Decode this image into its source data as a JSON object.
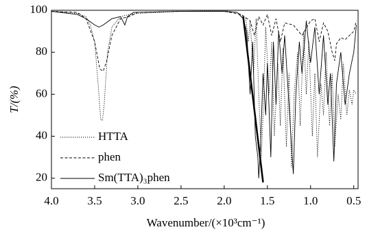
{
  "chart_data": {
    "type": "line",
    "x_label": "Wavenumber/(×10³cm⁻¹)",
    "y_label": "T/(%)",
    "xlim": [
      4.0,
      0.45
    ],
    "ylim": [
      15,
      100
    ],
    "xticks": [
      {
        "value": 4,
        "label": "4.0"
      },
      3.5,
      {
        "value": 3,
        "label": "3.0"
      },
      2.5,
      {
        "value": 2,
        "label": "2.0"
      },
      1.5,
      {
        "value": 1,
        "label": "1.0"
      },
      0.5
    ],
    "yticks": [
      20,
      40,
      60,
      80,
      100
    ],
    "legend": "lower-left",
    "series": [
      {
        "name": "HTTA",
        "color": "#000000",
        "dash": "dotted",
        "x": [
          4.0,
          3.8,
          3.7,
          3.6,
          3.55,
          3.5,
          3.46,
          3.43,
          3.41,
          3.39,
          3.35,
          3.3,
          3.2,
          3.1,
          3.0,
          2.5,
          2.0,
          1.85,
          1.75,
          1.72,
          1.7,
          1.66,
          1.63,
          1.6,
          1.57,
          1.55,
          1.52,
          1.48,
          1.45,
          1.42,
          1.38,
          1.35,
          1.32,
          1.28,
          1.25,
          1.22,
          1.19,
          1.15,
          1.12,
          1.08,
          1.05,
          1.02,
          0.98,
          0.95,
          0.92,
          0.88,
          0.85,
          0.82,
          0.78,
          0.75,
          0.72,
          0.68,
          0.65,
          0.62,
          0.58,
          0.55,
          0.52,
          0.5,
          0.47
        ],
        "values": [
          99.5,
          99,
          98.5,
          97,
          93,
          85,
          65,
          48,
          47.5,
          55,
          80,
          92,
          97,
          98,
          98.5,
          99.5,
          99.8,
          99,
          96,
          85,
          95,
          70,
          96,
          60,
          30,
          50,
          92,
          60,
          85,
          40,
          75,
          45,
          82,
          35,
          70,
          25,
          60,
          80,
          45,
          90,
          60,
          85,
          40,
          70,
          30,
          65,
          50,
          80,
          45,
          70,
          35,
          60,
          48,
          75,
          50,
          62,
          55,
          62,
          60
        ]
      },
      {
        "name": "phen",
        "color": "#000000",
        "dash": "dashed",
        "x": [
          4.0,
          3.7,
          3.6,
          3.5,
          3.44,
          3.4,
          3.36,
          3.3,
          3.2,
          3.1,
          3.0,
          2.5,
          2.0,
          1.8,
          1.7,
          1.65,
          1.6,
          1.55,
          1.5,
          1.45,
          1.4,
          1.35,
          1.3,
          1.2,
          1.1,
          1.0,
          0.95,
          0.9,
          0.85,
          0.8,
          0.75,
          0.72,
          0.7,
          0.65,
          0.6,
          0.55,
          0.5,
          0.47
        ],
        "values": [
          99.5,
          99,
          96,
          85,
          72,
          71,
          76,
          88,
          96,
          97,
          99,
          99.5,
          99.5,
          98,
          95,
          88,
          97,
          93,
          98,
          88,
          96,
          85,
          94,
          93,
          88,
          95,
          96,
          85,
          94,
          90,
          80,
          76,
          84,
          87,
          86,
          88,
          90,
          95
        ]
      },
      {
        "name": "Sm(TTA)₃phen",
        "color": "#000000",
        "dash": "solid",
        "x": [
          4.0,
          3.7,
          3.6,
          3.5,
          3.45,
          3.4,
          3.3,
          3.2,
          3.15,
          3.12,
          3.05,
          2.5,
          2.0,
          1.85,
          1.78,
          1.74,
          1.7,
          1.67,
          1.64,
          1.61,
          1.6,
          1.58,
          1.55,
          1.52,
          1.5,
          1.46,
          1.43,
          1.4,
          1.37,
          1.33,
          1.3,
          1.25,
          1.2,
          1.17,
          1.13,
          1.1,
          1.05,
          1.0,
          0.95,
          0.9,
          0.85,
          0.8,
          0.77,
          0.73,
          0.7,
          0.65,
          0.6,
          0.55,
          0.5,
          0.47
        ],
        "values": [
          99.5,
          98,
          96,
          93,
          92,
          93,
          96,
          97,
          93,
          97,
          99,
          99.5,
          99.5,
          99,
          96,
          90,
          60,
          85,
          40,
          30,
          20,
          35,
          70,
          50,
          75,
          30,
          85,
          55,
          90,
          70,
          88,
          55,
          22,
          60,
          85,
          70,
          95,
          75,
          92,
          60,
          88,
          55,
          70,
          28,
          65,
          80,
          55,
          70,
          80,
          93
        ]
      }
    ],
    "guide_line": {
      "x": [
        1.78,
        1.55
      ],
      "y": [
        97,
        18
      ]
    }
  }
}
